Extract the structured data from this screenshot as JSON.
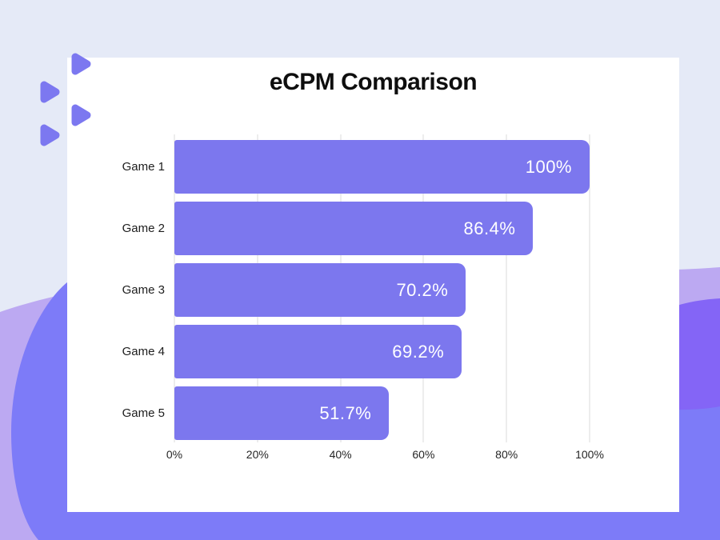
{
  "page": {
    "background_color": "#E5EAF7",
    "card_color": "#FFFFFF"
  },
  "title": "eCPM Comparison",
  "chart_data": {
    "type": "bar",
    "orientation": "horizontal",
    "title": "eCPM Comparison",
    "categories": [
      "Game 1",
      "Game 2",
      "Game 3",
      "Game 4",
      "Game 5"
    ],
    "values": [
      100,
      86.4,
      70.2,
      69.2,
      51.7
    ],
    "value_labels": [
      "100%",
      "86.4%",
      "70.2%",
      "69.2%",
      "51.7%"
    ],
    "xlim": [
      0,
      100
    ],
    "x_ticks": [
      "0%",
      "20%",
      "40%",
      "60%",
      "80%",
      "100%"
    ],
    "x_tick_values": [
      0,
      20,
      40,
      60,
      80,
      100
    ],
    "grid": "vertical-only",
    "legend": "none",
    "bar_color": "#7C77EE",
    "value_label_color": "#FFFFFF",
    "category_label_color": "#1D1D1D",
    "gridline_color": "#DBDBDB"
  },
  "decorations": {
    "play_triangle_icon_color": "#7C78F0",
    "blob_light_purple": "#BCA9F2",
    "blob_violet": "#8465F6",
    "blob_blue_purple": "#7D7BF8"
  }
}
